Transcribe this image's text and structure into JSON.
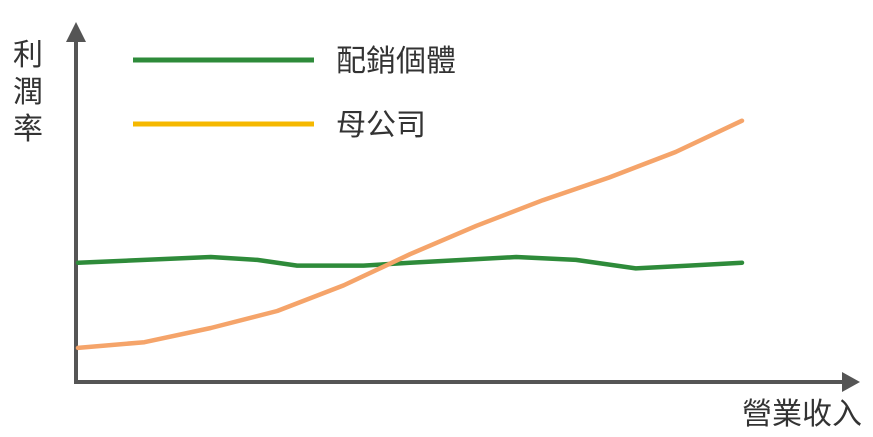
{
  "chart_data": {
    "type": "line",
    "title": "",
    "xlabel": "營業收入",
    "ylabel": "利潤率",
    "ylabel_chars": [
      "利",
      "潤",
      "率"
    ],
    "xlim": [
      0,
      100
    ],
    "ylim": [
      0,
      100
    ],
    "grid": false,
    "ticks": false,
    "legend_position": "top-left",
    "axis_color": "#555555",
    "series": [
      {
        "name": "配銷個體",
        "color": "#2E8B3A",
        "x": [
          0,
          10,
          20,
          27,
          33,
          43,
          50,
          58,
          66,
          75,
          84,
          92,
          100
        ],
        "y": [
          42,
          43,
          44,
          43,
          41,
          41,
          42,
          43,
          44,
          43,
          40,
          41,
          42
        ]
      },
      {
        "name": "母公司",
        "legend_color": "#F5B800",
        "color": "#F5A46A",
        "x": [
          0,
          10,
          20,
          30,
          40,
          50,
          60,
          70,
          80,
          90,
          100
        ],
        "y": [
          12,
          14,
          19,
          25,
          34,
          45,
          55,
          64,
          72,
          81,
          92
        ]
      }
    ]
  }
}
